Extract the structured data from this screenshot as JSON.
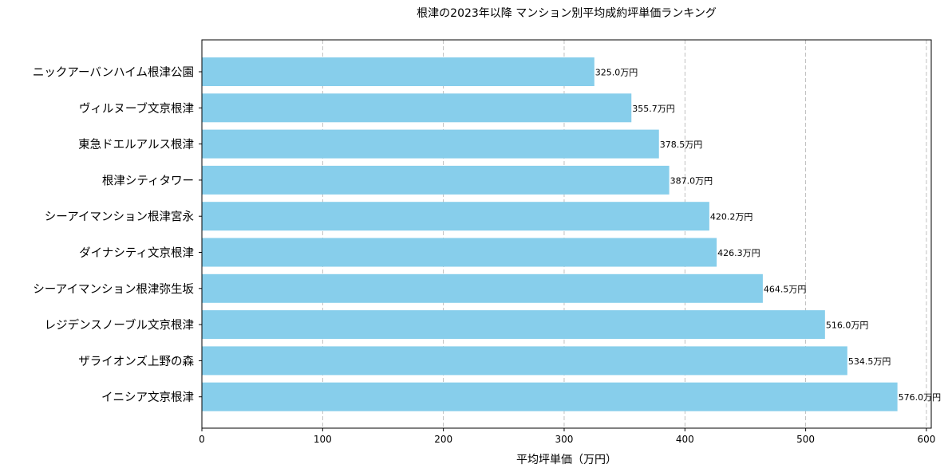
{
  "chart_data": {
    "type": "bar",
    "orientation": "horizontal",
    "title": "根津の2023年以降 マンション別平均成約坪単価ランキング",
    "xlabel": "平均坪単価（万円）",
    "ylabel": "",
    "xlim": [
      0,
      604
    ],
    "xticks": [
      0,
      100,
      200,
      300,
      400,
      500,
      600
    ],
    "grid": {
      "x": true,
      "y": false,
      "style": "dashed"
    },
    "bar_color": "#87CEEB",
    "value_suffix": "万円",
    "categories": [
      "ニックアーバンハイム根津公園",
      "ヴィルヌーブ文京根津",
      "東急ドエルアルス根津",
      "根津シティタワー",
      "シーアイマンション根津宮永",
      "ダイナシティ文京根津",
      "シーアイマンション根津弥生坂",
      "レジデンスノーブル文京根津",
      "ザライオンズ上野の森",
      "イニシア文京根津"
    ],
    "values": [
      325.0,
      355.7,
      378.5,
      387.0,
      420.2,
      426.3,
      464.5,
      516.0,
      534.5,
      576.0
    ],
    "data_labels": [
      "325.0万円",
      "355.7万円",
      "378.5万円",
      "387.0万円",
      "420.2万円",
      "426.3万円",
      "464.5万円",
      "516.0万円",
      "534.5万円",
      "576.0万円"
    ]
  }
}
